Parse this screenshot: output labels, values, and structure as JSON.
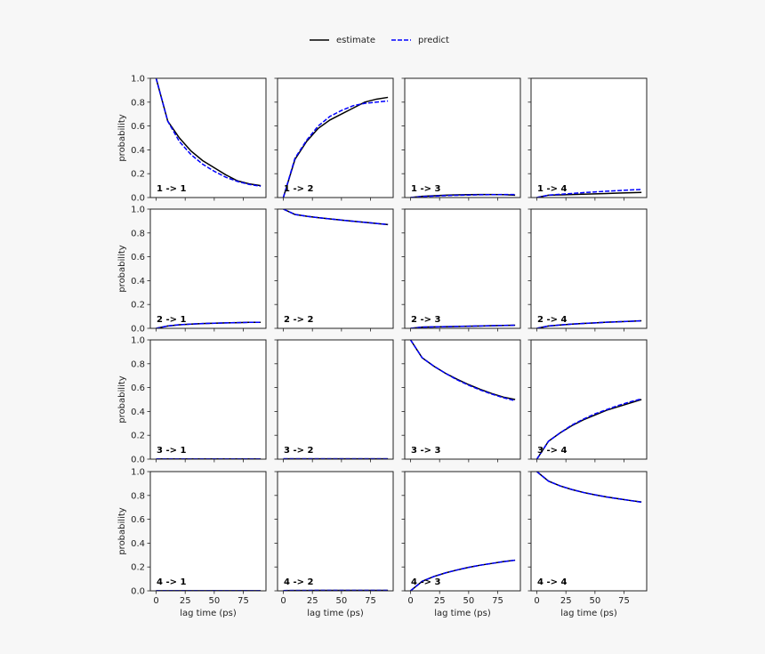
{
  "legend": {
    "estimate_label": "estimate",
    "predict_label": "predict"
  },
  "colors": {
    "estimate": "#000000",
    "predict": "#0000ff",
    "background": "#f7f7f7",
    "panel": "#ffffff"
  },
  "chart_data": {
    "type": "line",
    "title": "",
    "xlabel": "lag time (ps)",
    "ylabel": "probability",
    "xlim": [
      -5,
      94.5
    ],
    "ylim": [
      0,
      1
    ],
    "xticks": [
      0,
      25,
      50,
      75
    ],
    "yticks": [
      0.0,
      0.2,
      0.4,
      0.6,
      0.8,
      1.0
    ],
    "ytick_labels": [
      "0.0",
      "0.2",
      "0.4",
      "0.6",
      "0.8",
      "1.0"
    ],
    "grid": false,
    "legend_position": "top center",
    "x": [
      0,
      10,
      20,
      30,
      40,
      50,
      60,
      70,
      80,
      90
    ],
    "panels": [
      {
        "label": "1 -> 1",
        "row": 0,
        "col": 0,
        "estimate": [
          1.0,
          0.64,
          0.5,
          0.39,
          0.31,
          0.25,
          0.19,
          0.14,
          0.115,
          0.1
        ],
        "predict": [
          1.0,
          0.64,
          0.47,
          0.36,
          0.28,
          0.22,
          0.17,
          0.135,
          0.11,
          0.095
        ]
      },
      {
        "label": "1 -> 2",
        "row": 0,
        "col": 1,
        "estimate": [
          0.0,
          0.32,
          0.47,
          0.58,
          0.65,
          0.7,
          0.75,
          0.8,
          0.825,
          0.84
        ],
        "predict": [
          0.0,
          0.33,
          0.48,
          0.6,
          0.68,
          0.73,
          0.77,
          0.79,
          0.8,
          0.81
        ]
      },
      {
        "label": "1 -> 3",
        "row": 0,
        "col": 2,
        "estimate": [
          0.0,
          0.01,
          0.015,
          0.02,
          0.022,
          0.024,
          0.025,
          0.025,
          0.024,
          0.02
        ],
        "predict": [
          0.0,
          0.008,
          0.012,
          0.016,
          0.019,
          0.021,
          0.023,
          0.024,
          0.025,
          0.025
        ]
      },
      {
        "label": "1 -> 4",
        "row": 0,
        "col": 3,
        "estimate": [
          0.0,
          0.02,
          0.022,
          0.025,
          0.028,
          0.031,
          0.034,
          0.037,
          0.04,
          0.043
        ],
        "predict": [
          0.0,
          0.02,
          0.027,
          0.034,
          0.041,
          0.047,
          0.053,
          0.058,
          0.063,
          0.068
        ]
      },
      {
        "label": "2 -> 1",
        "row": 1,
        "col": 0,
        "estimate": [
          0.0,
          0.02,
          0.03,
          0.035,
          0.04,
          0.043,
          0.046,
          0.048,
          0.05,
          0.05
        ],
        "predict": [
          0.0,
          0.02,
          0.03,
          0.035,
          0.04,
          0.043,
          0.046,
          0.048,
          0.05,
          0.05
        ]
      },
      {
        "label": "2 -> 2",
        "row": 1,
        "col": 1,
        "estimate": [
          1.0,
          0.955,
          0.94,
          0.928,
          0.918,
          0.908,
          0.898,
          0.889,
          0.88,
          0.87
        ],
        "predict": [
          1.0,
          0.955,
          0.94,
          0.928,
          0.918,
          0.908,
          0.898,
          0.889,
          0.88,
          0.87
        ]
      },
      {
        "label": "2 -> 3",
        "row": 1,
        "col": 2,
        "estimate": [
          0.0,
          0.01,
          0.012,
          0.014,
          0.016,
          0.018,
          0.02,
          0.022,
          0.024,
          0.026
        ],
        "predict": [
          0.0,
          0.01,
          0.012,
          0.014,
          0.016,
          0.018,
          0.02,
          0.022,
          0.024,
          0.026
        ]
      },
      {
        "label": "2 -> 4",
        "row": 1,
        "col": 3,
        "estimate": [
          0.0,
          0.02,
          0.028,
          0.035,
          0.041,
          0.046,
          0.051,
          0.055,
          0.059,
          0.063
        ],
        "predict": [
          0.0,
          0.02,
          0.028,
          0.035,
          0.041,
          0.046,
          0.051,
          0.055,
          0.059,
          0.063
        ]
      },
      {
        "label": "3 -> 1",
        "row": 2,
        "col": 0,
        "estimate": [
          0.002,
          0.002,
          0.002,
          0.002,
          0.002,
          0.002,
          0.002,
          0.002,
          0.002,
          0.002
        ],
        "predict": [
          0.002,
          0.002,
          0.002,
          0.002,
          0.002,
          0.002,
          0.002,
          0.002,
          0.002,
          0.002
        ]
      },
      {
        "label": "3 -> 2",
        "row": 2,
        "col": 1,
        "estimate": [
          0.003,
          0.003,
          0.003,
          0.003,
          0.003,
          0.003,
          0.003,
          0.003,
          0.003,
          0.003
        ],
        "predict": [
          0.003,
          0.003,
          0.003,
          0.003,
          0.003,
          0.003,
          0.003,
          0.003,
          0.003,
          0.003
        ]
      },
      {
        "label": "3 -> 3",
        "row": 2,
        "col": 2,
        "estimate": [
          1.0,
          0.85,
          0.78,
          0.72,
          0.67,
          0.625,
          0.585,
          0.55,
          0.52,
          0.5
        ],
        "predict": [
          1.0,
          0.85,
          0.78,
          0.72,
          0.665,
          0.62,
          0.58,
          0.545,
          0.515,
          0.49
        ]
      },
      {
        "label": "3 -> 4",
        "row": 2,
        "col": 3,
        "estimate": [
          0.0,
          0.15,
          0.22,
          0.28,
          0.33,
          0.37,
          0.41,
          0.44,
          0.47,
          0.5
        ],
        "predict": [
          0.0,
          0.15,
          0.22,
          0.285,
          0.335,
          0.38,
          0.415,
          0.45,
          0.48,
          0.505
        ]
      },
      {
        "label": "4 -> 1",
        "row": 3,
        "col": 0,
        "estimate": [
          0.001,
          0.001,
          0.001,
          0.001,
          0.001,
          0.001,
          0.001,
          0.001,
          0.001,
          0.001
        ],
        "predict": [
          0.001,
          0.001,
          0.001,
          0.001,
          0.001,
          0.001,
          0.001,
          0.001,
          0.001,
          0.001
        ]
      },
      {
        "label": "4 -> 2",
        "row": 3,
        "col": 1,
        "estimate": [
          0.002,
          0.003,
          0.003,
          0.004,
          0.004,
          0.004,
          0.004,
          0.004,
          0.004,
          0.004
        ],
        "predict": [
          0.002,
          0.003,
          0.003,
          0.004,
          0.004,
          0.004,
          0.004,
          0.004,
          0.004,
          0.004
        ]
      },
      {
        "label": "4 -> 3",
        "row": 3,
        "col": 2,
        "estimate": [
          0.0,
          0.08,
          0.12,
          0.15,
          0.175,
          0.197,
          0.215,
          0.23,
          0.245,
          0.257
        ],
        "predict": [
          0.0,
          0.08,
          0.12,
          0.15,
          0.175,
          0.197,
          0.215,
          0.23,
          0.245,
          0.257
        ]
      },
      {
        "label": "4 -> 4",
        "row": 3,
        "col": 3,
        "estimate": [
          1.0,
          0.92,
          0.88,
          0.85,
          0.825,
          0.805,
          0.787,
          0.772,
          0.758,
          0.745
        ],
        "predict": [
          1.0,
          0.92,
          0.88,
          0.85,
          0.825,
          0.805,
          0.787,
          0.772,
          0.758,
          0.743
        ]
      }
    ]
  }
}
